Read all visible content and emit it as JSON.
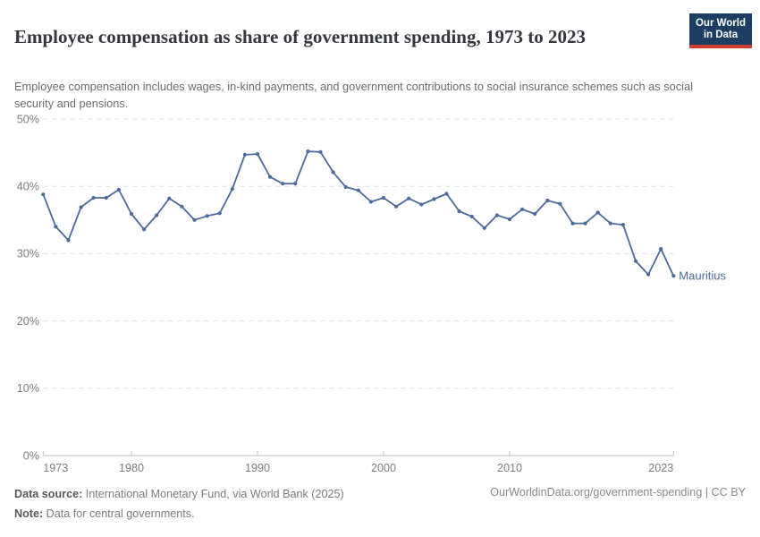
{
  "header": {
    "title": "Employee compensation as share of government spending, 1973 to 2023",
    "subtitle": "Employee compensation includes wages, in-kind payments, and government contributions to social insurance schemes such as social security and pensions.",
    "logo": {
      "line1": "Our World",
      "line2": "in Data"
    }
  },
  "chart_data": {
    "type": "line",
    "title": "Employee compensation as share of government spending, 1973 to 2023",
    "x": [
      1973,
      1974,
      1975,
      1976,
      1977,
      1978,
      1979,
      1980,
      1981,
      1982,
      1983,
      1984,
      1985,
      1986,
      1987,
      1988,
      1989,
      1990,
      1991,
      1992,
      1993,
      1994,
      1995,
      1996,
      1997,
      1998,
      1999,
      2000,
      2001,
      2002,
      2003,
      2004,
      2005,
      2006,
      2007,
      2008,
      2009,
      2010,
      2011,
      2012,
      2013,
      2014,
      2015,
      2016,
      2017,
      2018,
      2019,
      2020,
      2021,
      2022,
      2023
    ],
    "series": [
      {
        "name": "Mauritius",
        "color": "#4C6A9C",
        "values": [
          38.8,
          34.0,
          32.0,
          36.9,
          38.3,
          38.3,
          39.5,
          35.9,
          33.6,
          35.7,
          38.2,
          37.0,
          35.0,
          35.6,
          36.0,
          39.6,
          44.7,
          44.8,
          41.4,
          40.4,
          40.4,
          45.2,
          45.1,
          42.1,
          39.9,
          39.4,
          37.7,
          38.3,
          37.0,
          38.2,
          37.3,
          38.1,
          38.9,
          36.3,
          35.5,
          33.8,
          35.7,
          35.1,
          36.6,
          35.9,
          37.9,
          37.4,
          34.5,
          34.5,
          36.1,
          34.5,
          34.3,
          28.9,
          26.9,
          30.7,
          26.7
        ]
      }
    ],
    "xlabel": "",
    "ylabel": "",
    "xlim": [
      1973,
      2023
    ],
    "ylim": [
      0,
      50
    ],
    "x_ticks": [
      1973,
      1980,
      1990,
      2000,
      2010,
      2023
    ],
    "y_ticks": [
      0,
      10,
      20,
      30,
      40,
      50
    ],
    "y_tick_suffix": "%",
    "grid": "horizontal-dashed",
    "legend_position": "end-of-line-label"
  },
  "footer": {
    "source_label": "Data source:",
    "source_text": " International Monetary Fund, via World Bank (2025)",
    "note_label": "Note:",
    "note_text": " Data for central governments.",
    "url_text": "OurWorldinData.org/government-spending | CC BY"
  },
  "colors": {
    "line": "#4C6A9C",
    "grid": "#e0e0e0",
    "axis": "#bdbdbd",
    "tick_label": "#7d7d7d",
    "logo_bg": "#1d3d63",
    "logo_accent": "#d13d33"
  }
}
